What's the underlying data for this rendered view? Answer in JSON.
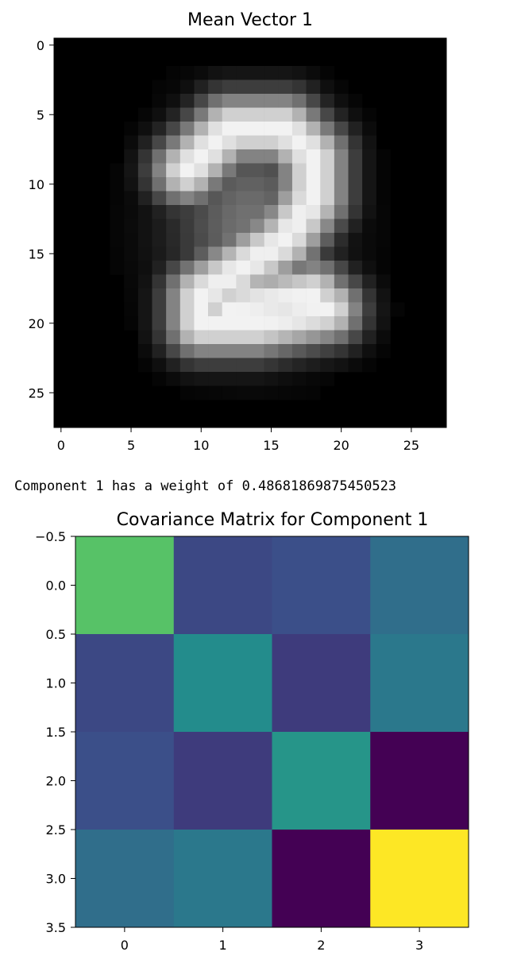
{
  "chart_data": [
    {
      "type": "heatmap",
      "title": "Mean Vector 1",
      "colormap": "gray",
      "rows": 28,
      "cols": 28,
      "xticks": [
        "0",
        "5",
        "10",
        "15",
        "20",
        "25"
      ],
      "yticks": [
        "0",
        "5",
        "10",
        "15",
        "20",
        "25"
      ],
      "xlim": [
        -0.5,
        27.5
      ],
      "ylim": [
        27.5,
        -0.5
      ]
    },
    {
      "type": "heatmap",
      "title": "Covariance Matrix for Component 1",
      "colormap": "viridis",
      "rows": 4,
      "cols": 4,
      "values": [
        [
          0.72,
          0.22,
          0.24,
          0.36
        ],
        [
          0.22,
          0.48,
          0.18,
          0.4
        ],
        [
          0.24,
          0.18,
          0.52,
          0.0
        ],
        [
          0.36,
          0.4,
          0.0,
          1.0
        ]
      ],
      "xticks": [
        "0",
        "1",
        "2",
        "3"
      ],
      "yticks": [
        "−0.5",
        "0.0",
        "0.5",
        "1.0",
        "1.5",
        "2.0",
        "2.5",
        "3.0",
        "3.5"
      ],
      "xlim": [
        -0.5,
        3.5
      ],
      "ylim": [
        3.5,
        -0.5
      ]
    }
  ],
  "output_text": {
    "weight_line": "Component 1 has a weight of 0.48681869875450523"
  }
}
